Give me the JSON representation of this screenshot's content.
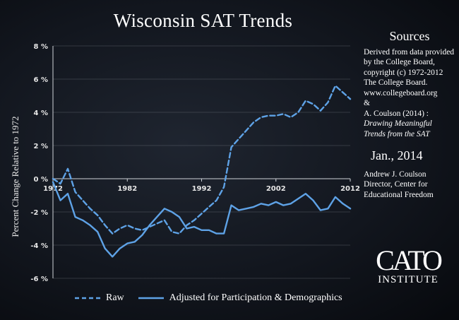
{
  "title": "Wisconsin SAT Trends",
  "sidebar": {
    "sources_title": "Sources",
    "source_1": "Derived from data provided by the College Board, copyright (c) 1972-2012 The College Board. www.collegeboard.org",
    "ampersand": "&",
    "source_2_author": "A. Coulson (2014) :",
    "source_2_title": "Drawing Meaningful Trends from the SAT",
    "date": "Jan., 2014",
    "author_name": "Andrew J. Coulson",
    "author_title": "Director, Center for Educational Freedom"
  },
  "logo": {
    "main": "CATO",
    "sub": "INSTITUTE"
  },
  "colors": {
    "background": "#12161e",
    "series": "#5ea2e6",
    "grid": "#8a8f98",
    "text": "#ffffff"
  },
  "chart_data": {
    "type": "line",
    "title": "Wisconsin SAT Trends",
    "ylabel": "Percent Change Relative to 1972",
    "xlabel": "",
    "xlim": [
      1972,
      2012
    ],
    "ylim": [
      -6,
      8
    ],
    "yticks": [
      8,
      6,
      4,
      2,
      0,
      -2,
      -4,
      -6
    ],
    "ytick_labels": [
      "8 %",
      "6 %",
      "4 %",
      "2 %",
      "0 %",
      "-2 %",
      "-4 %",
      "-6 %"
    ],
    "xticks": [
      1972,
      1982,
      1992,
      2002,
      2012
    ],
    "xtick_labels": [
      "1972",
      "1982",
      "1992",
      "2002",
      "2012"
    ],
    "grid": true,
    "legend": "bottom",
    "x": [
      1972,
      1973,
      1974,
      1975,
      1976,
      1977,
      1978,
      1979,
      1980,
      1981,
      1982,
      1983,
      1984,
      1985,
      1986,
      1987,
      1988,
      1989,
      1990,
      1991,
      1992,
      1993,
      1994,
      1995,
      1996,
      1997,
      1998,
      1999,
      2000,
      2001,
      2002,
      2003,
      2004,
      2005,
      2006,
      2007,
      2008,
      2009,
      2010,
      2011,
      2012
    ],
    "series": [
      {
        "name": "Raw",
        "style": "dashed",
        "values": [
          0.0,
          -0.3,
          0.6,
          -0.8,
          -1.3,
          -1.8,
          -2.2,
          -2.8,
          -3.3,
          -3.0,
          -2.8,
          -3.0,
          -3.1,
          -2.9,
          -2.7,
          -2.5,
          -3.2,
          -3.3,
          -2.8,
          -2.5,
          -2.1,
          -1.7,
          -1.3,
          -0.5,
          1.9,
          2.4,
          2.9,
          3.4,
          3.7,
          3.8,
          3.8,
          3.9,
          3.7,
          4.0,
          4.7,
          4.5,
          4.1,
          4.6,
          5.6,
          5.2,
          4.8
        ]
      },
      {
        "name": "Adjusted for Participation & Demographics",
        "style": "solid",
        "values": [
          -0.2,
          -1.3,
          -0.9,
          -2.3,
          -2.5,
          -2.8,
          -3.2,
          -4.2,
          -4.7,
          -4.2,
          -3.9,
          -3.8,
          -3.4,
          -2.8,
          -2.3,
          -1.8,
          -2.0,
          -2.3,
          -3.0,
          -2.9,
          -3.1,
          -3.1,
          -3.3,
          -3.3,
          -1.6,
          -1.9,
          -1.8,
          -1.7,
          -1.5,
          -1.6,
          -1.4,
          -1.6,
          -1.5,
          -1.2,
          -0.9,
          -1.3,
          -1.9,
          -1.8,
          -1.1,
          -1.5,
          -1.8
        ]
      }
    ]
  },
  "legend": {
    "raw": "Raw",
    "adjusted": "Adjusted for Participation & Demographics"
  }
}
